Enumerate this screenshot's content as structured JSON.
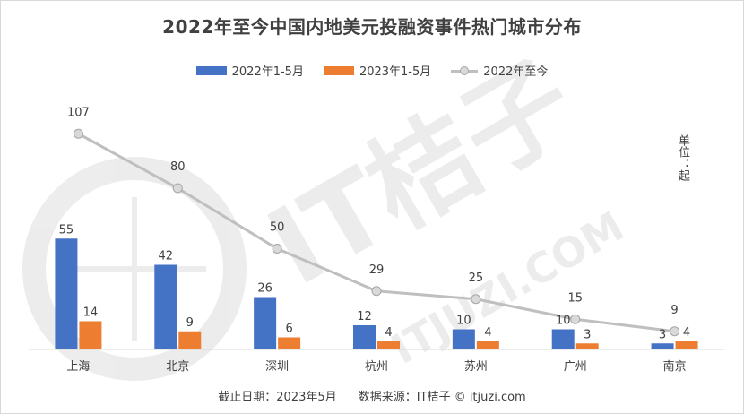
{
  "title": "2022年至今中国内地美元投融资事件热门城市分布",
  "unit_label": "单位：起",
  "footer": {
    "date_note": "截止日期：2023年5月",
    "source_note": "数据来源：IT桔子 © itjuzi.com"
  },
  "watermark": {
    "brand": "IT桔子",
    "site": "ITJUZI.COM"
  },
  "colors": {
    "series1": "#4472C4",
    "series2": "#ED7D31",
    "line": "#BFBFBF",
    "marker": "#D9D9D9"
  },
  "chart_data": {
    "type": "bar",
    "title": "2022年至今中国内地美元投融资事件热门城市分布",
    "categories": [
      "上海",
      "北京",
      "深圳",
      "杭州",
      "苏州",
      "广州",
      "南京"
    ],
    "series": [
      {
        "name": "2022年1-5月",
        "type": "bar",
        "values": [
          55,
          42,
          26,
          12,
          10,
          10,
          3
        ]
      },
      {
        "name": "2023年1-5月",
        "type": "bar",
        "values": [
          14,
          9,
          6,
          4,
          4,
          3,
          4
        ]
      },
      {
        "name": "2022年至今",
        "type": "line",
        "values": [
          107,
          80,
          50,
          29,
          25,
          15,
          9
        ]
      }
    ],
    "ylim": [
      0,
      120
    ],
    "grid": false,
    "legend_position": "top"
  }
}
